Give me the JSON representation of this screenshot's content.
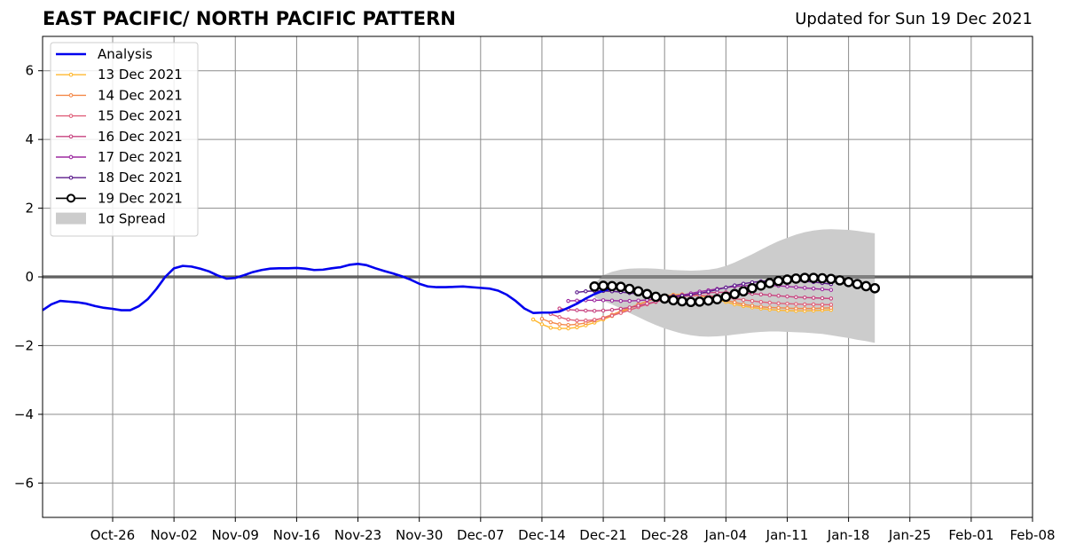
{
  "header": {
    "title": "EAST PACIFIC/ NORTH PACIFIC PATTERN",
    "subtitle": "Updated for Sun 19 Dec 2021"
  },
  "chart_data": {
    "type": "line",
    "title": "EAST PACIFIC/ NORTH PACIFIC PATTERN",
    "xlabel": "",
    "ylabel": "",
    "xlim": [
      "2021-10-18",
      "2022-02-08"
    ],
    "ylim": [
      -7,
      7
    ],
    "x_ticks": [
      {
        "date": "2021-10-26",
        "label": "Oct-26"
      },
      {
        "date": "2021-11-02",
        "label": "Nov-02"
      },
      {
        "date": "2021-11-09",
        "label": "Nov-09"
      },
      {
        "date": "2021-11-16",
        "label": "Nov-16"
      },
      {
        "date": "2021-11-23",
        "label": "Nov-23"
      },
      {
        "date": "2021-11-30",
        "label": "Nov-30"
      },
      {
        "date": "2021-12-07",
        "label": "Dec-07"
      },
      {
        "date": "2021-12-14",
        "label": "Dec-14"
      },
      {
        "date": "2021-12-21",
        "label": "Dec-21"
      },
      {
        "date": "2021-12-28",
        "label": "Dec-28"
      },
      {
        "date": "2022-01-04",
        "label": "Jan-04"
      },
      {
        "date": "2022-01-11",
        "label": "Jan-11"
      },
      {
        "date": "2022-01-18",
        "label": "Jan-18"
      },
      {
        "date": "2022-01-25",
        "label": "Jan-25"
      },
      {
        "date": "2022-02-01",
        "label": "Feb-01"
      },
      {
        "date": "2022-02-08",
        "label": "Feb-08"
      }
    ],
    "y_ticks": [
      6,
      4,
      2,
      0,
      -2,
      -4,
      -6
    ],
    "y_tick_labels": [
      "6",
      "4",
      "2",
      "0",
      "−2",
      "−4",
      "−6"
    ],
    "grid": true,
    "zero_line": true,
    "legend_position": "upper-left",
    "analysis": {
      "name": "Analysis",
      "color": "#0000ee",
      "start_date": "2021-10-18",
      "values": [
        -0.97,
        -0.8,
        -0.7,
        -0.72,
        -0.74,
        -0.78,
        -0.85,
        -0.9,
        -0.93,
        -0.97,
        -0.97,
        -0.85,
        -0.65,
        -0.35,
        0.0,
        0.25,
        0.32,
        0.3,
        0.24,
        0.16,
        0.04,
        -0.05,
        -0.03,
        0.05,
        0.14,
        0.2,
        0.24,
        0.25,
        0.25,
        0.26,
        0.24,
        0.2,
        0.21,
        0.25,
        0.28,
        0.35,
        0.38,
        0.34,
        0.25,
        0.17,
        0.1,
        0.02,
        -0.08,
        -0.2,
        -0.28,
        -0.3,
        -0.3,
        -0.29,
        -0.28,
        -0.3,
        -0.32,
        -0.34,
        -0.4,
        -0.52,
        -0.7,
        -0.92,
        -1.05,
        -1.04,
        -1.04,
        -1.01,
        -0.9,
        -0.78,
        -0.63,
        -0.5,
        -0.4,
        -0.33
      ]
    },
    "spread": {
      "name": "1σ Spread",
      "color": "#cccccc",
      "start_date": "2021-12-20",
      "upper": [
        -0.2,
        0.05,
        0.15,
        0.21,
        0.24,
        0.25,
        0.25,
        0.24,
        0.22,
        0.2,
        0.19,
        0.18,
        0.19,
        0.21,
        0.25,
        0.32,
        0.42,
        0.54,
        0.66,
        0.79,
        0.92,
        1.04,
        1.14,
        1.23,
        1.3,
        1.35,
        1.38,
        1.39,
        1.38,
        1.37,
        1.34,
        1.3,
        1.27
      ],
      "lower": [
        -0.6,
        -0.7,
        -0.8,
        -0.92,
        -1.05,
        -1.17,
        -1.29,
        -1.4,
        -1.5,
        -1.58,
        -1.65,
        -1.7,
        -1.73,
        -1.74,
        -1.73,
        -1.71,
        -1.68,
        -1.65,
        -1.62,
        -1.6,
        -1.59,
        -1.59,
        -1.6,
        -1.61,
        -1.62,
        -1.64,
        -1.66,
        -1.7,
        -1.74,
        -1.78,
        -1.83,
        -1.87,
        -1.92
      ]
    },
    "series": [
      {
        "name": "13 Dec 2021",
        "color": "#ffb830",
        "start_date": "2021-12-13",
        "values": [
          -1.24,
          -1.38,
          -1.48,
          -1.5,
          -1.5,
          -1.47,
          -1.41,
          -1.33,
          -1.24,
          -1.14,
          -1.03,
          -0.92,
          -0.81,
          -0.71,
          -0.62,
          -0.56,
          -0.52,
          -0.51,
          -0.52,
          -0.55,
          -0.6,
          -0.66,
          -0.73,
          -0.8,
          -0.85,
          -0.89,
          -0.92,
          -0.95,
          -0.97,
          -0.98,
          -0.99,
          -0.99,
          -0.98,
          -0.97,
          -0.96
        ]
      },
      {
        "name": "14 Dec 2021",
        "color": "#f4894a",
        "start_date": "2021-12-14",
        "values": [
          -1.22,
          -1.32,
          -1.38,
          -1.4,
          -1.38,
          -1.34,
          -1.27,
          -1.19,
          -1.1,
          -1.0,
          -0.9,
          -0.8,
          -0.71,
          -0.63,
          -0.57,
          -0.53,
          -0.51,
          -0.51,
          -0.53,
          -0.57,
          -0.62,
          -0.68,
          -0.74,
          -0.8,
          -0.84,
          -0.87,
          -0.89,
          -0.9,
          -0.91,
          -0.92,
          -0.92,
          -0.92,
          -0.91,
          -0.9
        ]
      },
      {
        "name": "15 Dec 2021",
        "color": "#e0607a",
        "start_date": "2021-12-15",
        "values": [
          -1.08,
          -1.17,
          -1.24,
          -1.27,
          -1.27,
          -1.25,
          -1.2,
          -1.13,
          -1.05,
          -0.97,
          -0.88,
          -0.8,
          -0.73,
          -0.66,
          -0.61,
          -0.57,
          -0.55,
          -0.54,
          -0.55,
          -0.57,
          -0.6,
          -0.63,
          -0.67,
          -0.7,
          -0.73,
          -0.75,
          -0.77,
          -0.78,
          -0.79,
          -0.8,
          -0.8,
          -0.81,
          -0.81
        ]
      },
      {
        "name": "16 Dec 2021",
        "color": "#c7427f",
        "start_date": "2021-12-16",
        "values": [
          -0.92,
          -0.95,
          -0.97,
          -0.98,
          -0.99,
          -0.98,
          -0.96,
          -0.93,
          -0.89,
          -0.84,
          -0.78,
          -0.72,
          -0.66,
          -0.6,
          -0.55,
          -0.51,
          -0.48,
          -0.46,
          -0.45,
          -0.45,
          -0.46,
          -0.47,
          -0.49,
          -0.51,
          -0.53,
          -0.55,
          -0.57,
          -0.59,
          -0.6,
          -0.61,
          -0.62,
          -0.63
        ]
      },
      {
        "name": "17 Dec 2021",
        "color": "#9d2aa0",
        "start_date": "2021-12-17",
        "values": [
          -0.7,
          -0.69,
          -0.68,
          -0.68,
          -0.68,
          -0.69,
          -0.7,
          -0.7,
          -0.69,
          -0.67,
          -0.64,
          -0.61,
          -0.57,
          -0.53,
          -0.48,
          -0.43,
          -0.39,
          -0.35,
          -0.31,
          -0.28,
          -0.26,
          -0.25,
          -0.25,
          -0.25,
          -0.26,
          -0.28,
          -0.3,
          -0.32,
          -0.34,
          -0.36,
          -0.38
        ]
      },
      {
        "name": "18 Dec 2021",
        "color": "#5c1c8c",
        "start_date": "2021-12-18",
        "values": [
          -0.45,
          -0.42,
          -0.41,
          -0.41,
          -0.42,
          -0.44,
          -0.47,
          -0.5,
          -0.53,
          -0.55,
          -0.56,
          -0.56,
          -0.55,
          -0.52,
          -0.48,
          -0.43,
          -0.37,
          -0.31,
          -0.25,
          -0.2,
          -0.16,
          -0.13,
          -0.11,
          -0.1,
          -0.1,
          -0.11,
          -0.13,
          -0.15,
          -0.18,
          -0.21
        ]
      },
      {
        "name": "19 Dec 2021",
        "color": "#000000",
        "start_date": "2021-12-20",
        "values": [
          -0.28,
          -0.26,
          -0.27,
          -0.29,
          -0.35,
          -0.42,
          -0.5,
          -0.58,
          -0.63,
          -0.68,
          -0.71,
          -0.73,
          -0.72,
          -0.69,
          -0.65,
          -0.58,
          -0.5,
          -0.42,
          -0.33,
          -0.25,
          -0.18,
          -0.12,
          -0.08,
          -0.05,
          -0.03,
          -0.03,
          -0.04,
          -0.06,
          -0.1,
          -0.15,
          -0.21,
          -0.27,
          -0.33
        ]
      }
    ],
    "legend": [
      "Analysis",
      "13 Dec 2021",
      "14 Dec 2021",
      "15 Dec 2021",
      "16 Dec 2021",
      "17 Dec 2021",
      "18 Dec 2021",
      "19 Dec 2021",
      "1σ Spread"
    ]
  }
}
